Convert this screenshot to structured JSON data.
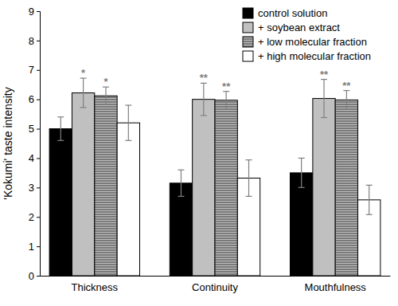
{
  "chart_data": {
    "type": "bar",
    "y_label": "'Kokumi' taste intensity",
    "categories": [
      "Thickness",
      "Continuity",
      "Mouthfulness"
    ],
    "series": [
      {
        "name": "control solution",
        "color": "#000000",
        "values": [
          5.0,
          3.15,
          3.5
        ],
        "errors": [
          0.4,
          0.45,
          0.5
        ]
      },
      {
        "name": "+ soybean extract",
        "color": "#c0c0c0",
        "values": [
          6.22,
          6.0,
          6.03
        ],
        "errors": [
          0.5,
          0.55,
          0.65
        ],
        "significance": [
          "*",
          "**",
          "**"
        ]
      },
      {
        "name": "+ low molecular fraction",
        "color": "#7a7a7a",
        "values": [
          6.12,
          5.97,
          5.98
        ],
        "errors": [
          0.3,
          0.3,
          0.32
        ],
        "significance": [
          "*",
          "**",
          "**"
        ]
      },
      {
        "name": "+ high molecular fraction",
        "color": "#ffffff",
        "values": [
          5.2,
          3.32,
          2.58
        ],
        "errors": [
          0.6,
          0.62,
          0.5
        ]
      }
    ],
    "ylim": [
      0,
      9
    ],
    "yticks": [
      0,
      1,
      2,
      3,
      4,
      5,
      6,
      7,
      8,
      9
    ],
    "grid": false,
    "legend": "upper right"
  }
}
